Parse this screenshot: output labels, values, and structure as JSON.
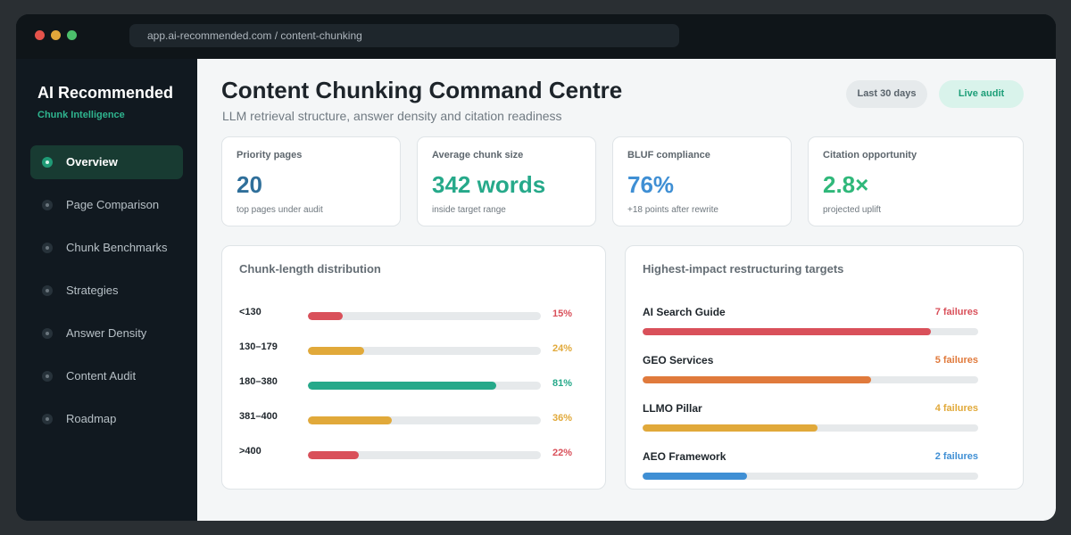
{
  "window": {
    "url": "app.ai-recommended.com / content-chunking"
  },
  "sidebar": {
    "brand": "AI Recommended",
    "subtitle": "Chunk Intelligence",
    "items": [
      {
        "label": "Overview",
        "active": true
      },
      {
        "label": "Page Comparison",
        "active": false
      },
      {
        "label": "Chunk Benchmarks",
        "active": false
      },
      {
        "label": "Strategies",
        "active": false
      },
      {
        "label": "Answer Density",
        "active": false
      },
      {
        "label": "Content Audit",
        "active": false
      },
      {
        "label": "Roadmap",
        "active": false
      }
    ]
  },
  "header": {
    "title": "Content Chunking Command Centre",
    "subtitle": "LLM retrieval structure, answer density and citation readiness",
    "range_label": "Last 30 days",
    "live_label": "Live audit"
  },
  "kpis": [
    {
      "label": "Priority pages",
      "value": "20",
      "note": "top pages under audit",
      "color": "#2f6f9a"
    },
    {
      "label": "Average chunk size",
      "value": "342 words",
      "note": "inside target range",
      "color": "#26a98a"
    },
    {
      "label": "BLUF compliance",
      "value": "76%",
      "note": "+18 points after rewrite",
      "color": "#3f8fd4"
    },
    {
      "label": "Citation opportunity",
      "value": "2.8×",
      "note": "projected uplift",
      "color": "#2fb87a"
    }
  ],
  "distribution": {
    "title": "Chunk-length distribution",
    "rows": [
      {
        "label": "<130",
        "value": 15,
        "pct_label": "15%",
        "color": "#d9505a"
      },
      {
        "label": "130–179",
        "value": 24,
        "pct_label": "24%",
        "color": "#e1a93a"
      },
      {
        "label": "180–380",
        "value": 81,
        "pct_label": "81%",
        "color": "#26a98a"
      },
      {
        "label": "381–400",
        "value": 36,
        "pct_label": "36%",
        "color": "#e1a93a"
      },
      {
        "label": ">400",
        "value": 22,
        "pct_label": "22%",
        "color": "#d9505a"
      }
    ]
  },
  "targets": {
    "title": "Highest-impact restructuring targets",
    "rows": [
      {
        "name": "AI Search Guide",
        "failures_label": "7 failures",
        "level": 0.86,
        "color": "#d9505a"
      },
      {
        "name": "GEO Services",
        "failures_label": "5 failures",
        "level": 0.68,
        "color": "#e07a3c"
      },
      {
        "name": "LLMO Pillar",
        "failures_label": "4 failures",
        "level": 0.52,
        "color": "#e1a93a"
      },
      {
        "name": "AEO Framework",
        "failures_label": "2 failures",
        "level": 0.31,
        "color": "#3f8fd4"
      }
    ]
  }
}
